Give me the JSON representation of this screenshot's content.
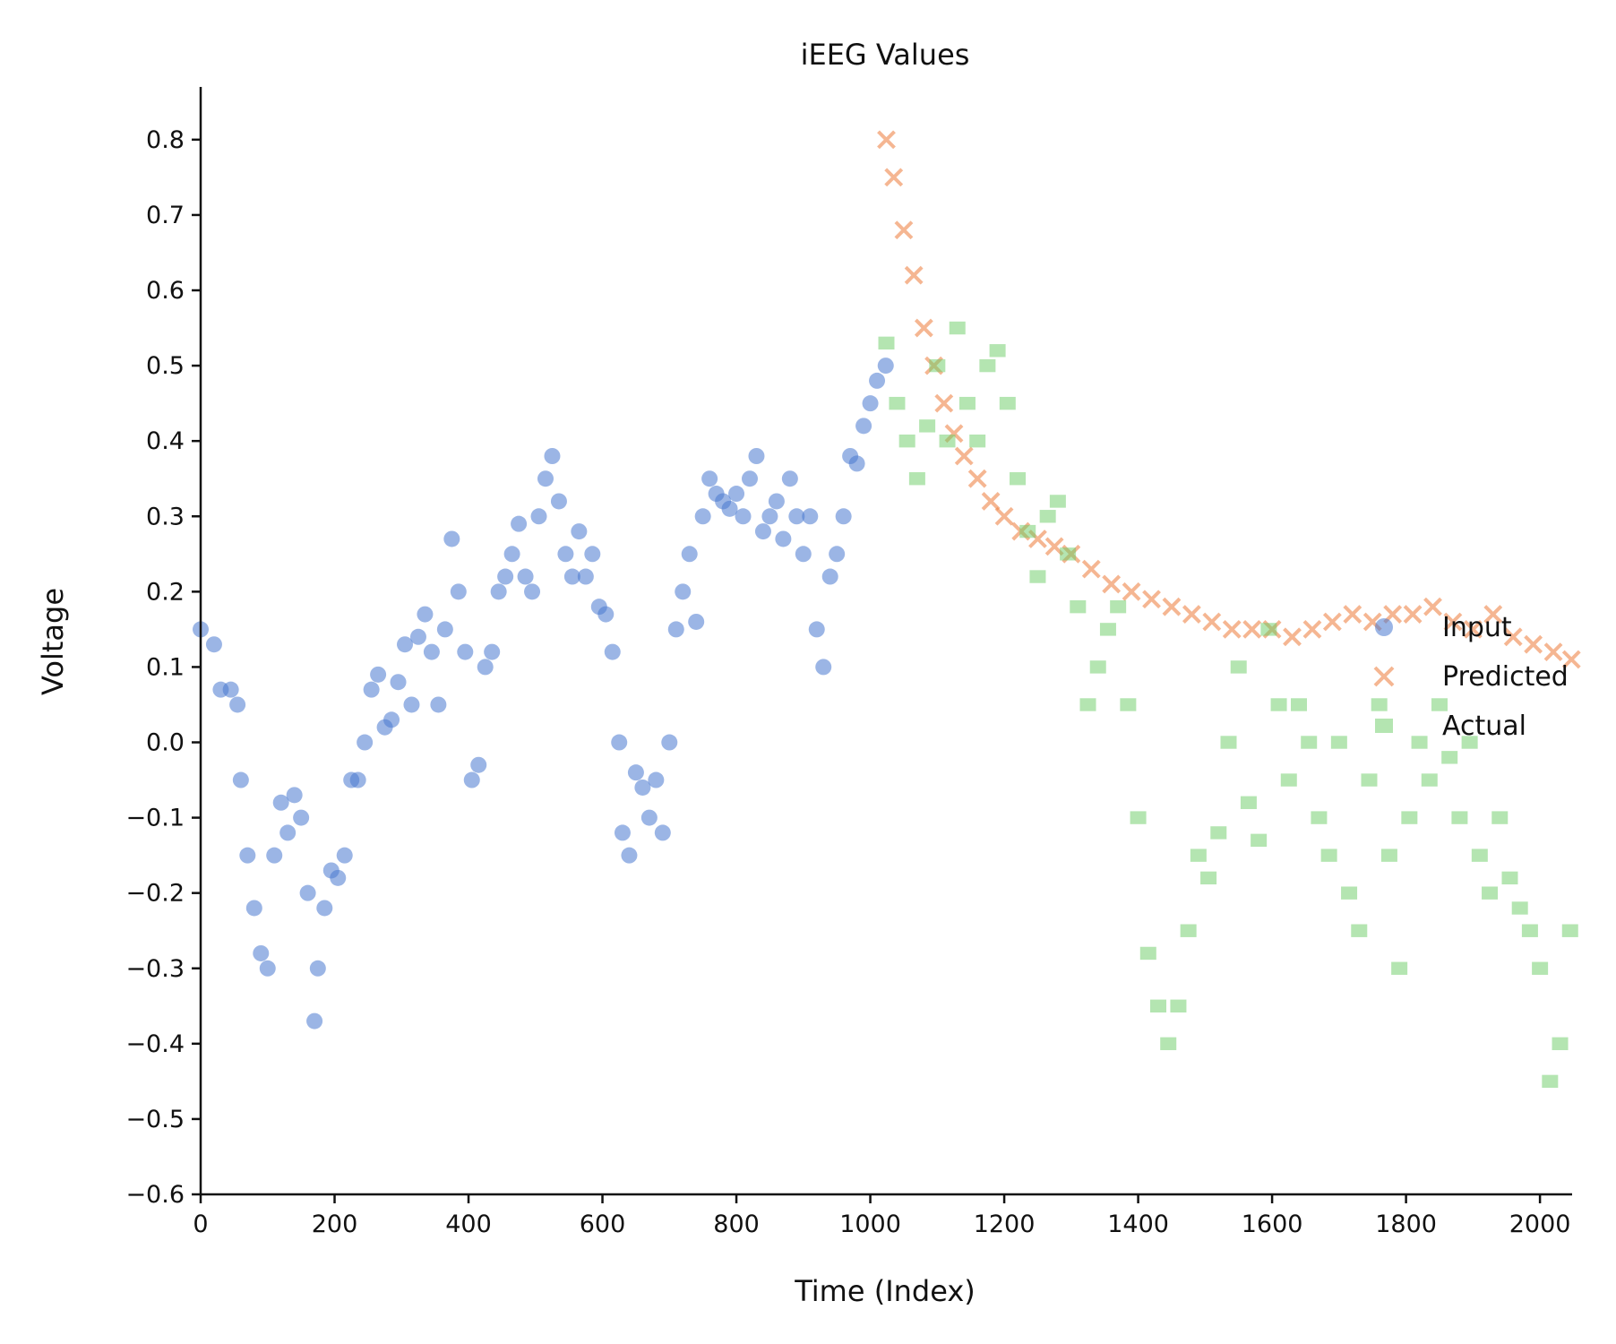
{
  "chart_data": {
    "type": "scatter",
    "title": "iEEG Values",
    "xlabel": "Time (Index)",
    "ylabel": "Voltage",
    "xlim": [
      0,
      2048
    ],
    "ylim": [
      -0.6,
      0.87
    ],
    "xticks": [
      0,
      200,
      400,
      600,
      800,
      1000,
      1200,
      1400,
      1600,
      1800,
      2000
    ],
    "xtick_labels": [
      "0",
      "200",
      "400",
      "600",
      "800",
      "1000",
      "1200",
      "1400",
      "1600",
      "1800",
      "2000"
    ],
    "yticks": [
      -0.6,
      -0.5,
      -0.4,
      -0.3,
      -0.2,
      -0.1,
      0.0,
      0.1,
      0.2,
      0.3,
      0.4,
      0.5,
      0.6,
      0.7,
      0.8
    ],
    "ytick_labels": [
      "−0.6",
      "−0.5",
      "−0.4",
      "−0.3",
      "−0.2",
      "−0.1",
      "0.0",
      "0.1",
      "0.2",
      "0.3",
      "0.4",
      "0.5",
      "0.6",
      "0.7",
      "0.8"
    ],
    "grid": false,
    "legend_position": "right",
    "series": [
      {
        "name": "Input",
        "marker": "circle",
        "color": "#4878d0",
        "x": [
          0,
          20,
          30,
          45,
          55,
          60,
          70,
          80,
          90,
          100,
          110,
          120,
          130,
          140,
          150,
          160,
          170,
          175,
          185,
          195,
          205,
          215,
          225,
          235,
          245,
          255,
          265,
          275,
          285,
          295,
          305,
          315,
          325,
          335,
          345,
          355,
          365,
          375,
          385,
          395,
          405,
          415,
          425,
          435,
          445,
          455,
          465,
          475,
          485,
          495,
          505,
          515,
          525,
          535,
          545,
          555,
          565,
          575,
          585,
          595,
          605,
          615,
          625,
          630,
          640,
          650,
          660,
          670,
          680,
          690,
          700,
          710,
          720,
          730,
          740,
          750,
          760,
          770,
          780,
          790,
          800,
          810,
          820,
          830,
          840,
          850,
          860,
          870,
          880,
          890,
          900,
          910,
          920,
          930,
          940,
          950,
          960,
          970,
          980,
          990,
          1000,
          1010,
          1023
        ],
        "y": [
          0.15,
          0.13,
          0.07,
          0.07,
          0.05,
          -0.05,
          -0.15,
          -0.22,
          -0.28,
          -0.3,
          -0.15,
          -0.08,
          -0.12,
          -0.07,
          -0.1,
          -0.2,
          -0.37,
          -0.3,
          -0.22,
          -0.17,
          -0.18,
          -0.15,
          -0.05,
          -0.05,
          0.0,
          0.07,
          0.09,
          0.02,
          0.03,
          0.08,
          0.13,
          0.05,
          0.14,
          0.17,
          0.12,
          0.05,
          0.15,
          0.27,
          0.2,
          0.12,
          -0.05,
          -0.03,
          0.1,
          0.12,
          0.2,
          0.22,
          0.25,
          0.29,
          0.22,
          0.2,
          0.3,
          0.35,
          0.38,
          0.32,
          0.25,
          0.22,
          0.28,
          0.22,
          0.25,
          0.18,
          0.17,
          0.12,
          0.0,
          -0.12,
          -0.15,
          -0.04,
          -0.06,
          -0.1,
          -0.05,
          -0.12,
          0.0,
          0.15,
          0.2,
          0.25,
          0.16,
          0.3,
          0.35,
          0.33,
          0.32,
          0.31,
          0.33,
          0.3,
          0.35,
          0.38,
          0.28,
          0.3,
          0.32,
          0.27,
          0.35,
          0.3,
          0.25,
          0.3,
          0.15,
          0.1,
          0.22,
          0.25,
          0.3,
          0.38,
          0.37,
          0.42,
          0.45,
          0.48,
          0.5
        ]
      },
      {
        "name": "Predicted",
        "marker": "x",
        "color": "#ee854a",
        "x": [
          1024,
          1035,
          1050,
          1065,
          1080,
          1095,
          1110,
          1125,
          1140,
          1160,
          1180,
          1200,
          1225,
          1250,
          1275,
          1300,
          1330,
          1360,
          1390,
          1420,
          1450,
          1480,
          1510,
          1540,
          1570,
          1600,
          1630,
          1660,
          1690,
          1720,
          1750,
          1780,
          1810,
          1840,
          1870,
          1900,
          1930,
          1960,
          1990,
          2020,
          2047
        ],
        "y": [
          0.8,
          0.75,
          0.68,
          0.62,
          0.55,
          0.5,
          0.45,
          0.41,
          0.38,
          0.35,
          0.32,
          0.3,
          0.28,
          0.27,
          0.26,
          0.25,
          0.23,
          0.21,
          0.2,
          0.19,
          0.18,
          0.17,
          0.16,
          0.15,
          0.15,
          0.15,
          0.14,
          0.15,
          0.16,
          0.17,
          0.16,
          0.17,
          0.17,
          0.18,
          0.16,
          0.15,
          0.17,
          0.14,
          0.13,
          0.12,
          0.11
        ]
      },
      {
        "name": "Actual",
        "marker": "square",
        "color": "#6acc64",
        "x": [
          1024,
          1040,
          1055,
          1070,
          1085,
          1100,
          1115,
          1130,
          1145,
          1160,
          1175,
          1190,
          1205,
          1220,
          1235,
          1250,
          1265,
          1280,
          1295,
          1310,
          1325,
          1340,
          1355,
          1370,
          1385,
          1400,
          1415,
          1430,
          1445,
          1460,
          1475,
          1490,
          1505,
          1520,
          1535,
          1550,
          1565,
          1580,
          1595,
          1610,
          1625,
          1640,
          1655,
          1670,
          1685,
          1700,
          1715,
          1730,
          1745,
          1760,
          1775,
          1790,
          1805,
          1820,
          1835,
          1850,
          1865,
          1880,
          1895,
          1910,
          1925,
          1940,
          1955,
          1970,
          1985,
          2000,
          2015,
          2030,
          2045
        ],
        "y": [
          0.53,
          0.45,
          0.4,
          0.35,
          0.42,
          0.5,
          0.4,
          0.55,
          0.45,
          0.4,
          0.5,
          0.52,
          0.45,
          0.35,
          0.28,
          0.22,
          0.3,
          0.32,
          0.25,
          0.18,
          0.05,
          0.1,
          0.15,
          0.18,
          0.05,
          -0.1,
          -0.28,
          -0.35,
          -0.4,
          -0.35,
          -0.25,
          -0.15,
          -0.18,
          -0.12,
          0.0,
          0.1,
          -0.08,
          -0.13,
          0.15,
          0.05,
          -0.05,
          0.05,
          0.0,
          -0.1,
          -0.15,
          0.0,
          -0.2,
          -0.25,
          -0.05,
          0.05,
          -0.15,
          -0.3,
          -0.1,
          0.0,
          -0.05,
          0.05,
          -0.02,
          -0.1,
          0.0,
          -0.15,
          -0.2,
          -0.1,
          -0.18,
          -0.22,
          -0.25,
          -0.3,
          -0.45,
          -0.4,
          -0.25
        ]
      }
    ]
  }
}
